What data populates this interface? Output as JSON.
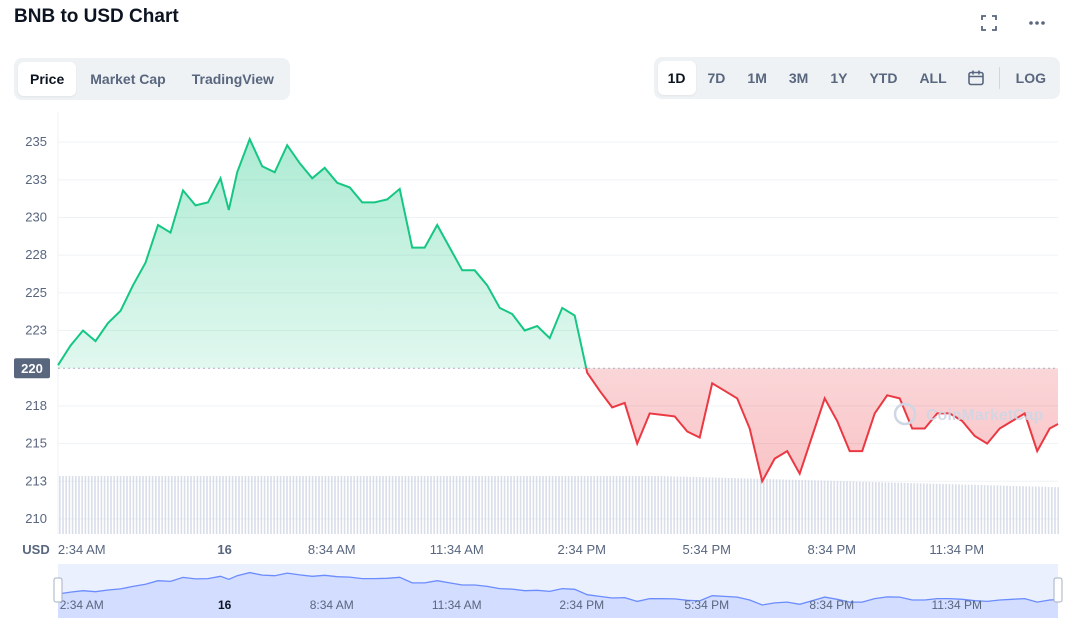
{
  "header": {
    "title": "BNB to USD Chart",
    "fullscreen_icon": "fullscreen-icon",
    "more_icon": "more-horizontal-icon"
  },
  "view_tabs": [
    {
      "label": "Price",
      "active": true
    },
    {
      "label": "Market Cap",
      "active": false
    },
    {
      "label": "TradingView",
      "active": false
    }
  ],
  "range_tabs": [
    {
      "label": "1D",
      "active": true
    },
    {
      "label": "7D",
      "active": false
    },
    {
      "label": "1M",
      "active": false
    },
    {
      "label": "3M",
      "active": false
    },
    {
      "label": "1Y",
      "active": false
    },
    {
      "label": "YTD",
      "active": false
    },
    {
      "label": "ALL",
      "active": false
    }
  ],
  "calendar_icon": "calendar-icon",
  "log_label": "LOG",
  "colors": {
    "up": "#16c784",
    "down": "#ea3943",
    "volume": "#cfd6e4",
    "navigator": "#6b8cff",
    "navigator_fill": "#dbe3ff",
    "grid": "#eff2f5",
    "baseline_label_bg": "#58667e"
  },
  "chart_data": {
    "type": "area",
    "currency_label": "USD",
    "baseline": 220,
    "baseline_label": "220",
    "y_ticks": [
      "235",
      "233",
      "230",
      "228",
      "225",
      "223",
      "218",
      "215",
      "213",
      "210"
    ],
    "y_tick_values": [
      235,
      232.5,
      230,
      227.5,
      225,
      222.5,
      217.5,
      215,
      212.5,
      210
    ],
    "ylim": [
      209,
      237
    ],
    "x_ticks": [
      "2:34 AM",
      "16",
      "8:34 AM",
      "11:34 AM",
      "2:34 PM",
      "5:34 PM",
      "8:34 PM",
      "11:34 PM"
    ],
    "x_tick_hours": [
      2.57,
      6,
      8.57,
      11.57,
      14.57,
      17.57,
      20.57,
      23.57
    ],
    "xlim": [
      2.0,
      26.0
    ],
    "series": [
      {
        "x": [
          2.0,
          2.3,
          2.6,
          2.9,
          3.2,
          3.5,
          3.8,
          4.1,
          4.4,
          4.7,
          5.0,
          5.3,
          5.6,
          5.9,
          6.1,
          6.3,
          6.6,
          6.9,
          7.2,
          7.5,
          7.8,
          8.1,
          8.4,
          8.7,
          9.0,
          9.3,
          9.6,
          9.9,
          10.2,
          10.5,
          10.8,
          11.1,
          11.4,
          11.7,
          12.0,
          12.3,
          12.6,
          12.9,
          13.2,
          13.5,
          13.8,
          14.1,
          14.4,
          14.7,
          15.0,
          15.3,
          15.6,
          15.9,
          16.2,
          16.5,
          16.8,
          17.1,
          17.4,
          17.7,
          18.0,
          18.3,
          18.6,
          18.9,
          19.2,
          19.5,
          19.8,
          20.1,
          20.4,
          20.7,
          21.0,
          21.3,
          21.6,
          21.9,
          22.2,
          22.5,
          22.8,
          23.1,
          23.4,
          23.7,
          24.0,
          24.3,
          24.6,
          24.9,
          25.2,
          25.5,
          25.8,
          26.0
        ],
        "y": [
          220.2,
          221.5,
          222.5,
          221.8,
          223.0,
          223.8,
          225.5,
          227.0,
          229.5,
          229.0,
          231.8,
          230.8,
          231.0,
          232.6,
          230.5,
          233.0,
          235.2,
          233.4,
          233.0,
          234.8,
          233.6,
          232.6,
          233.3,
          232.3,
          232.0,
          231.0,
          231.0,
          231.2,
          231.9,
          228.0,
          228.0,
          229.5,
          228.0,
          226.5,
          226.5,
          225.5,
          224.0,
          223.6,
          222.5,
          222.8,
          222.0,
          224.0,
          223.5,
          219.7,
          218.5,
          217.4,
          217.7,
          215.0,
          217.0,
          216.9,
          216.8,
          215.8,
          215.4,
          219.0,
          218.5,
          218.0,
          216.0,
          212.5,
          214.0,
          214.5,
          213.0,
          215.5,
          218.0,
          216.5,
          214.5,
          214.5,
          217.0,
          218.2,
          218.0,
          216.0,
          216.0,
          217.0,
          217.0,
          216.5,
          215.5,
          215.0,
          216.0,
          216.5,
          217.0,
          214.5,
          216.0,
          216.3
        ]
      }
    ],
    "watermark": "CoinMarketCap"
  }
}
